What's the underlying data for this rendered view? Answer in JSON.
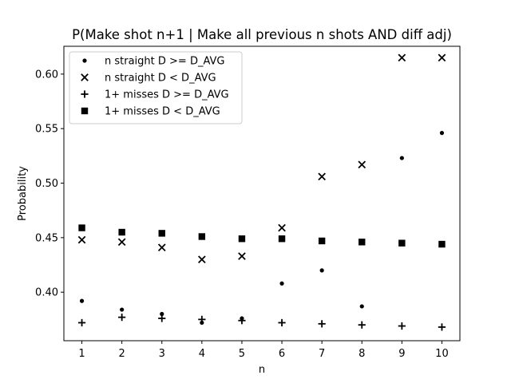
{
  "chart_data": {
    "type": "scatter",
    "title": "P(Make shot n+1 | Make all previous n shots AND diff adj)",
    "xlabel": "n",
    "ylabel": "Probability",
    "xlim": [
      0.55,
      10.45
    ],
    "ylim": [
      0.3555,
      0.6255
    ],
    "xticks": [
      1,
      2,
      3,
      4,
      5,
      6,
      7,
      8,
      9,
      10
    ],
    "xtick_labels": [
      "1",
      "2",
      "3",
      "4",
      "5",
      "6",
      "7",
      "8",
      "9",
      "10"
    ],
    "yticks": [
      0.4,
      0.45,
      0.5,
      0.55,
      0.6
    ],
    "ytick_labels": [
      "0.40",
      "0.45",
      "0.50",
      "0.55",
      "0.60"
    ],
    "grid": false,
    "legend_position": "top-left",
    "x": [
      1,
      2,
      3,
      4,
      5,
      6,
      7,
      8,
      9,
      10
    ],
    "series": [
      {
        "name": "n straight D >= D_AVG",
        "marker": "dot",
        "color": "#000000",
        "values": [
          0.392,
          0.384,
          0.38,
          0.372,
          0.376,
          0.408,
          0.42,
          0.387,
          0.523,
          0.546
        ]
      },
      {
        "name": "n straight D < D_AVG",
        "marker": "x",
        "color": "#000000",
        "values": [
          0.448,
          0.446,
          0.441,
          0.43,
          0.433,
          0.459,
          0.506,
          0.517,
          0.615,
          0.615
        ]
      },
      {
        "name": "1+ misses D >= D_AVG",
        "marker": "plus",
        "color": "#000000",
        "values": [
          0.372,
          0.377,
          0.376,
          0.375,
          0.374,
          0.372,
          0.371,
          0.37,
          0.369,
          0.368
        ]
      },
      {
        "name": "1+ misses D < D_AVG",
        "marker": "square",
        "color": "#000000",
        "values": [
          0.459,
          0.455,
          0.454,
          0.451,
          0.449,
          0.449,
          0.447,
          0.446,
          0.445,
          0.444
        ]
      }
    ]
  }
}
